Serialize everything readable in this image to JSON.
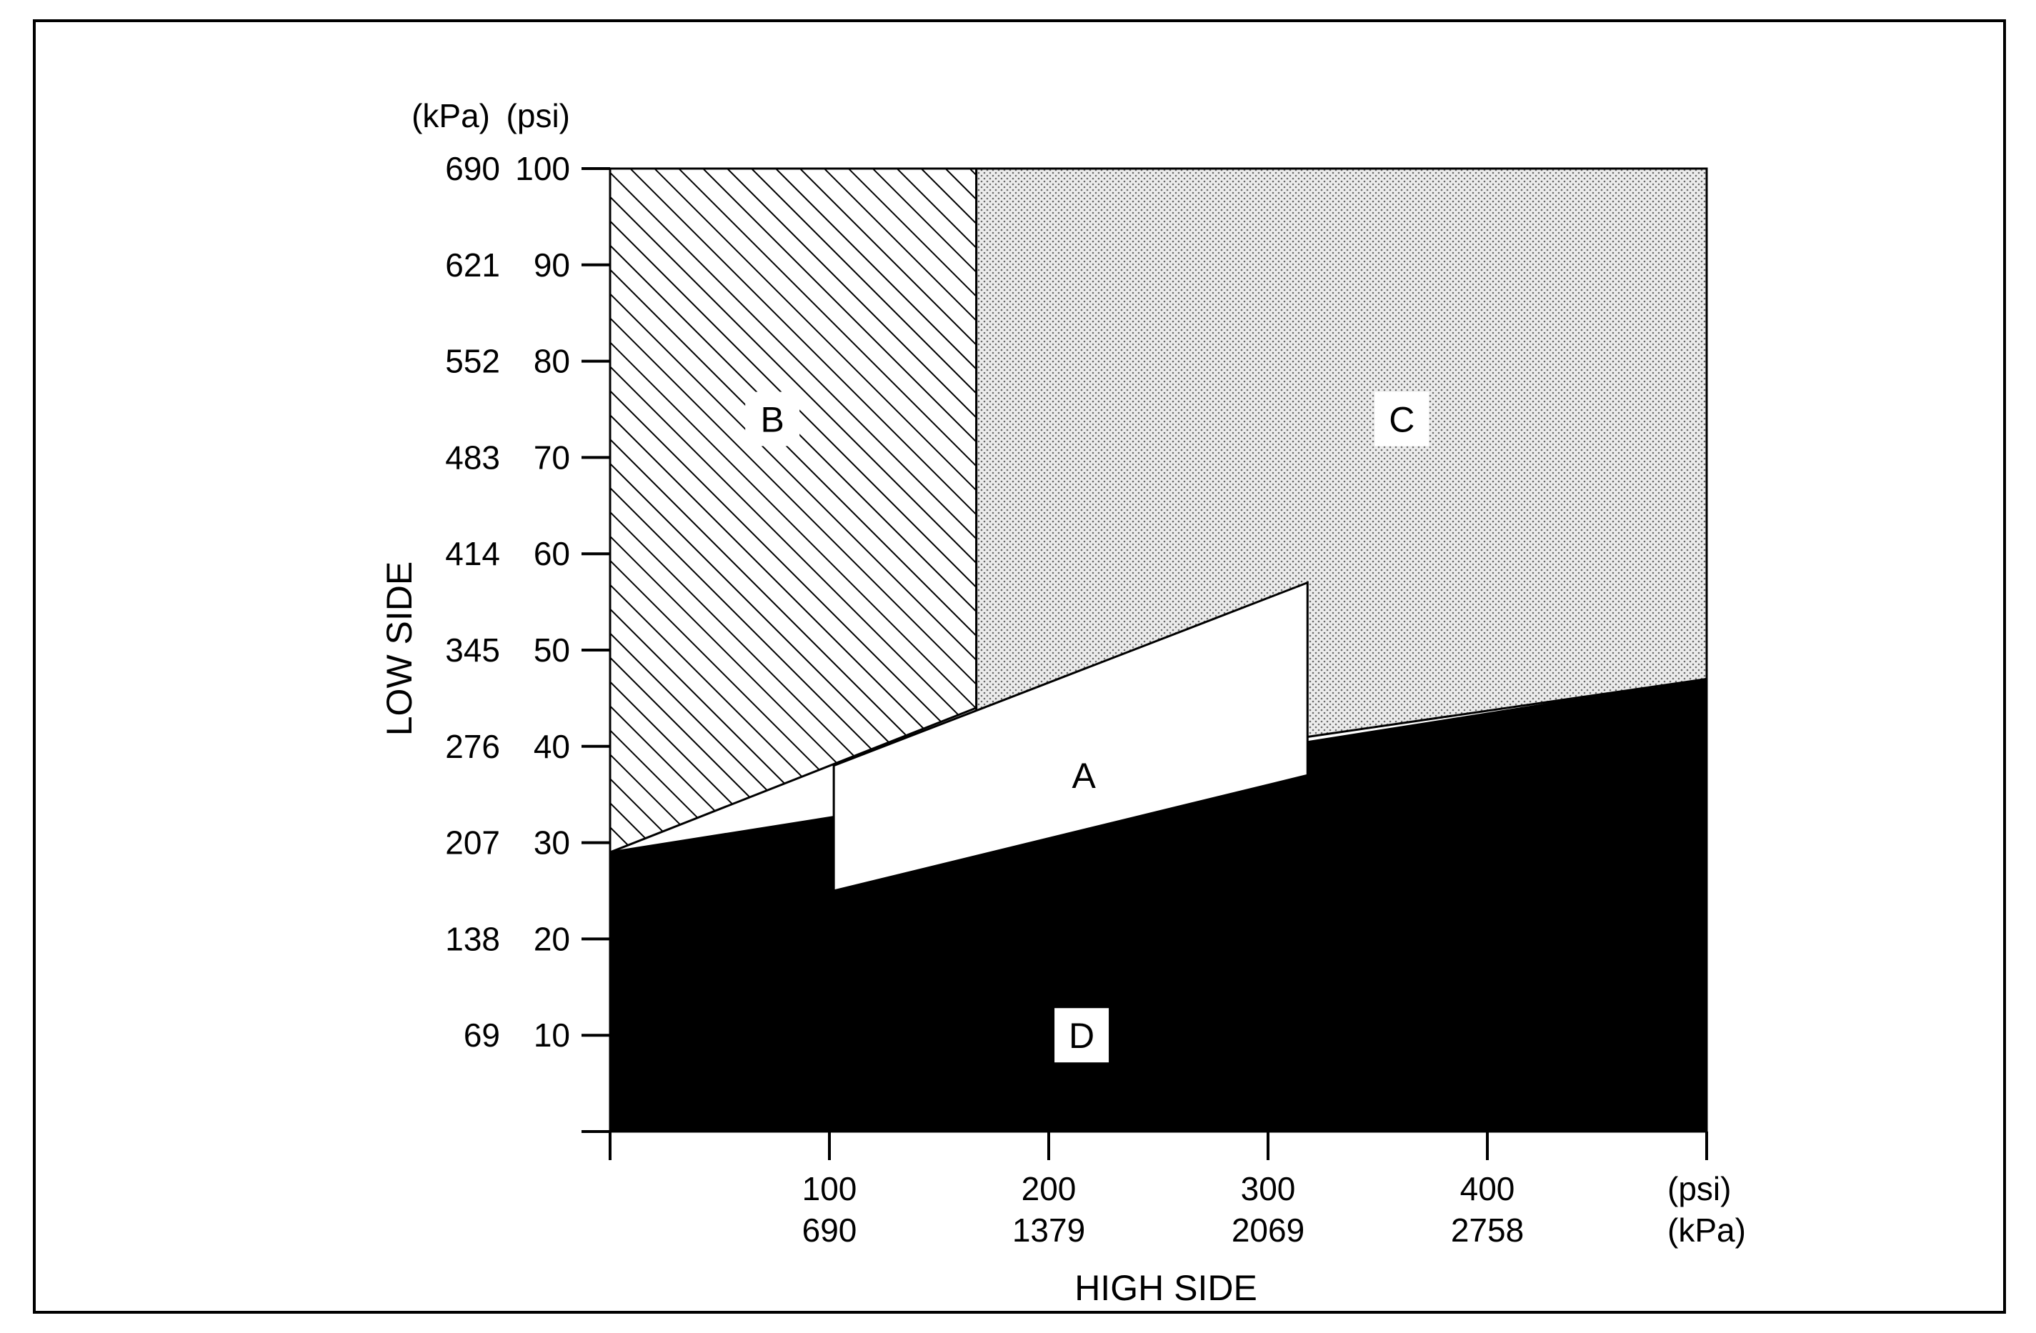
{
  "chart_data": {
    "type": "area",
    "xlabel": "HIGH SIDE",
    "ylabel": "LOW SIDE",
    "x_units": [
      "(psi)",
      "(kPa)"
    ],
    "y_units": [
      "(kPa)",
      "(psi)"
    ],
    "xlim": [
      0,
      500
    ],
    "ylim": [
      0,
      100
    ],
    "x_ticks": [
      {
        "psi": "100",
        "kpa": "690",
        "value": 100
      },
      {
        "psi": "200",
        "kpa": "1379",
        "value": 200
      },
      {
        "psi": "300",
        "kpa": "2069",
        "value": 300
      },
      {
        "psi": "400",
        "kpa": "2758",
        "value": 400
      }
    ],
    "y_ticks": [
      {
        "kpa": "690",
        "psi": "100",
        "value": 100
      },
      {
        "kpa": "621",
        "psi": "90",
        "value": 90
      },
      {
        "kpa": "552",
        "psi": "80",
        "value": 80
      },
      {
        "kpa": "483",
        "psi": "70",
        "value": 70
      },
      {
        "kpa": "414",
        "psi": "60",
        "value": 60
      },
      {
        "kpa": "345",
        "psi": "50",
        "value": 50
      },
      {
        "kpa": "276",
        "psi": "40",
        "value": 40
      },
      {
        "kpa": "207",
        "psi": "30",
        "value": 30
      },
      {
        "kpa": "138",
        "psi": "20",
        "value": 20
      },
      {
        "kpa": "69",
        "psi": "10",
        "value": 10
      }
    ],
    "regions": [
      {
        "name": "B",
        "fill": "hatched",
        "polygon": [
          [
            0,
            29
          ],
          [
            0,
            100
          ],
          [
            167,
            100
          ],
          [
            167,
            44
          ]
        ],
        "label_at": [
          74,
          74
        ]
      },
      {
        "name": "C",
        "fill": "stippled",
        "polygon": [
          [
            167,
            100
          ],
          [
            500,
            100
          ],
          [
            500,
            47
          ],
          [
            167,
            36
          ]
        ],
        "label_at": [
          361,
          74
        ]
      },
      {
        "name": "D",
        "fill": "black",
        "polygon": [
          [
            0,
            0
          ],
          [
            500,
            0
          ],
          [
            500,
            47
          ],
          [
            0,
            29
          ]
        ],
        "label_at": [
          215,
          10
        ]
      },
      {
        "name": "A",
        "fill": "white",
        "polygon": [
          [
            102,
            25
          ],
          [
            102,
            38
          ],
          [
            318,
            57
          ],
          [
            318,
            37
          ]
        ],
        "label_at": [
          216,
          37
        ]
      }
    ],
    "colors": {
      "ink": "#000000",
      "stipple": "#c8c8c8",
      "region_a": "#ffffff"
    }
  }
}
